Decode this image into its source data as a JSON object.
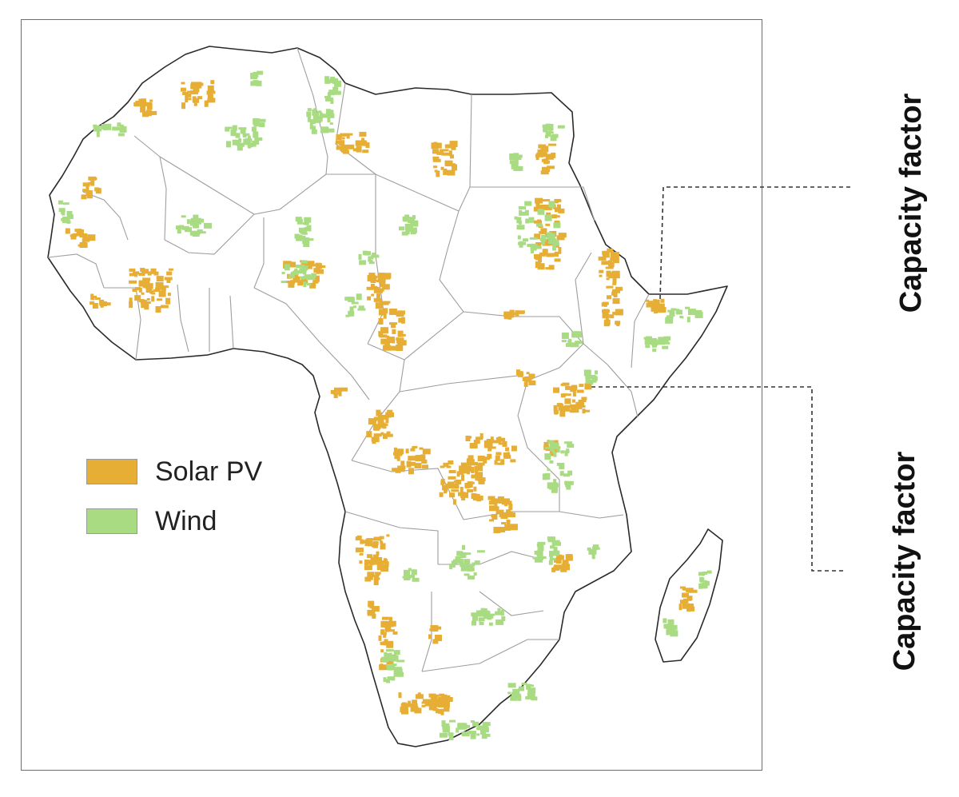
{
  "legend": {
    "items": [
      {
        "label": "Solar PV",
        "color": "#E6AE34"
      },
      {
        "label": "Wind",
        "color": "#A9DC82"
      }
    ]
  },
  "annotations": {
    "upper_label": "Capacity factor",
    "lower_label": "Capacity factor"
  },
  "colors": {
    "land_fill": "#ffffff",
    "coastline": "#2a2a2a",
    "borders": "#9e9e9e",
    "frame": "#6e6e6e",
    "leader_line": "#333333"
  }
}
